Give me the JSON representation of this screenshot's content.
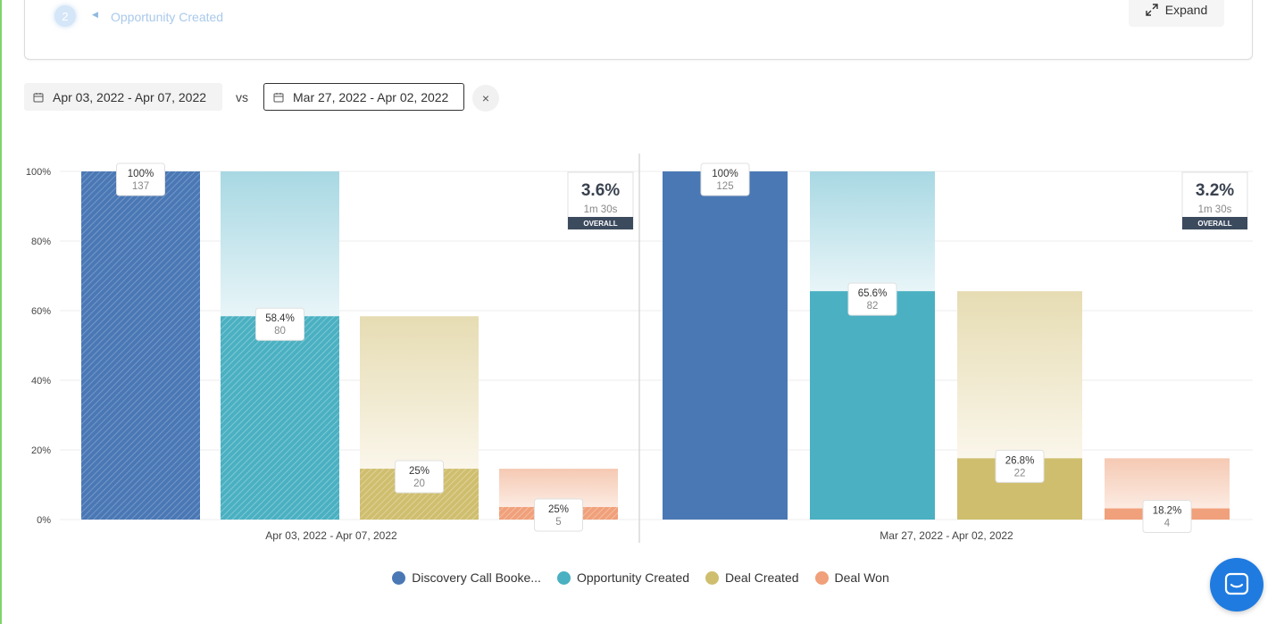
{
  "colors": {
    "discovery": "#4a78b5",
    "opportunity": "#4ab0c2",
    "deal_created": "#cfbe6e",
    "deal_won": "#f0a07a",
    "opportunity_light": "#b6dfe8",
    "deal_created_light": "#ece2bd",
    "deal_won_light": "#f5cbb6",
    "overall_badge": "#3c4a5e"
  },
  "header": {
    "step_number": "2",
    "step_label": "Opportunity Created",
    "expand_label": "Expand"
  },
  "date_filter": {
    "primary_range": "Apr 03, 2022 - Apr 07, 2022",
    "vs_label": "vs",
    "compare_range": "Mar 27, 2022 - Apr 02, 2022",
    "clear_icon": "×"
  },
  "chart_data": {
    "type": "bar",
    "ylim": [
      0,
      100
    ],
    "yticks": [
      "0%",
      "20%",
      "40%",
      "60%",
      "80%",
      "100%"
    ],
    "grid": true,
    "legend_position": "bottom",
    "legend": [
      "Discovery Call Booke...",
      "Opportunity Created",
      "Deal Created",
      "Deal Won"
    ],
    "groups": [
      {
        "label": "Apr 03, 2022 - Apr 07, 2022",
        "overall_pct": "3.6%",
        "overall_time": "1m 30s",
        "overall_label": "OVERALL",
        "pattern": "hatched",
        "bars": [
          {
            "stage": "Discovery Call Booke...",
            "value": 100,
            "label": "100%",
            "count": "137"
          },
          {
            "stage": "Opportunity Created",
            "value": 58.4,
            "label": "58.4%",
            "count": "80"
          },
          {
            "stage": "Deal Created",
            "value": 14.6,
            "label": "25%",
            "count": "20"
          },
          {
            "stage": "Deal Won",
            "value": 3.6,
            "label": "25%",
            "count": "5"
          }
        ]
      },
      {
        "label": "Mar 27, 2022 - Apr 02, 2022",
        "overall_pct": "3.2%",
        "overall_time": "1m 30s",
        "overall_label": "OVERALL",
        "pattern": "solid",
        "bars": [
          {
            "stage": "Discovery Call Booke...",
            "value": 100,
            "label": "100%",
            "count": "125"
          },
          {
            "stage": "Opportunity Created",
            "value": 65.6,
            "label": "65.6%",
            "count": "82"
          },
          {
            "stage": "Deal Created",
            "value": 17.6,
            "label": "26.8%",
            "count": "22"
          },
          {
            "stage": "Deal Won",
            "value": 3.2,
            "label": "18.2%",
            "count": "4"
          }
        ]
      }
    ]
  },
  "chat_widget": {
    "icon": "chat-bubble-icon"
  }
}
